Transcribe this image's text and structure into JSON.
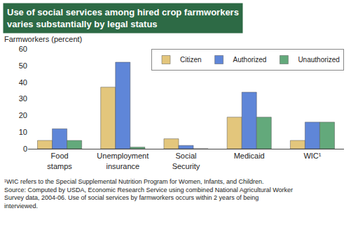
{
  "chart_data": {
    "type": "bar",
    "title": "Use of social services among hired crop farmworkers varies substantially by legal status",
    "y_label": "Farmworkers (percent)",
    "categories": [
      "Food stamps",
      "Unemployment insurance",
      "Social Security",
      "Medicaid",
      "WIC¹"
    ],
    "series": [
      {
        "name": "Citizen",
        "color": "#e3c67c",
        "values": [
          5,
          37,
          6,
          19,
          5
        ]
      },
      {
        "name": "Authorized",
        "color": "#5f86d8",
        "values": [
          12,
          52,
          2,
          34,
          16
        ]
      },
      {
        "name": "Unauthorized",
        "color": "#63a97b",
        "values": [
          5,
          1,
          0,
          19,
          16
        ]
      }
    ],
    "ylim": [
      0,
      60
    ],
    "yticks": [
      0,
      10,
      20,
      30,
      40,
      50,
      60
    ],
    "grid": false,
    "legend": "top right",
    "footnotes": [
      "¹WIC refers to the Special Supplemental Nutrition Program for Women, Infants, and Children.",
      "Source: Computed by USDA, Economic Research Service using combined National Agricultural Worker Survey data, 2004-06. Use of social services by farmworkers occurs within 2 years of being interviewed."
    ]
  }
}
